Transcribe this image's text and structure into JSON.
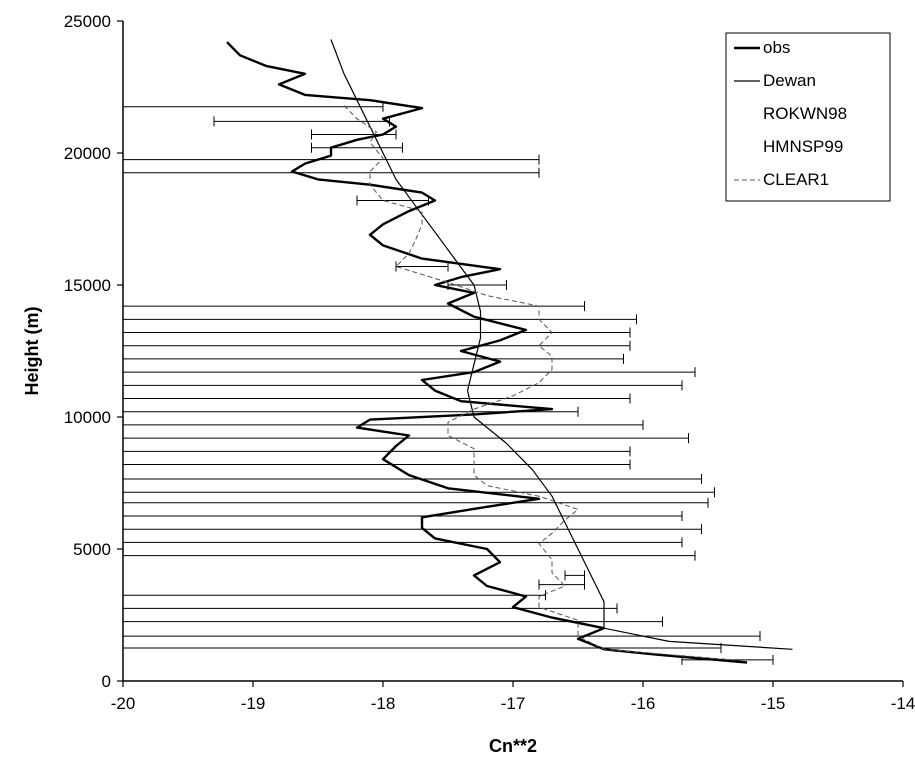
{
  "chart_data": {
    "type": "line",
    "title": "",
    "xlabel": "Cn**2",
    "ylabel": "Height (m)",
    "xlim": [
      -20,
      -14
    ],
    "ylim": [
      0,
      25000
    ],
    "x_ticks": [
      "-20",
      "-19",
      "-18",
      "-17",
      "-16",
      "-15",
      "-14"
    ],
    "y_ticks": [
      "0",
      "5000",
      "10000",
      "15000",
      "20000",
      "25000"
    ],
    "legend_position": "top-right",
    "grid": false,
    "series": [
      {
        "name": "obs",
        "style": "thick",
        "points": [
          [
            -15.2,
            700
          ],
          [
            -15.9,
            1000
          ],
          [
            -16.3,
            1200
          ],
          [
            -16.5,
            1600
          ],
          [
            -16.3,
            2000
          ],
          [
            -16.7,
            2400
          ],
          [
            -17.0,
            2800
          ],
          [
            -16.9,
            3200
          ],
          [
            -17.2,
            3600
          ],
          [
            -17.3,
            4000
          ],
          [
            -17.1,
            4500
          ],
          [
            -17.2,
            5000
          ],
          [
            -17.6,
            5400
          ],
          [
            -17.7,
            5800
          ],
          [
            -17.7,
            6200
          ],
          [
            -17.2,
            6600
          ],
          [
            -16.8,
            6900
          ],
          [
            -17.5,
            7300
          ],
          [
            -17.8,
            7800
          ],
          [
            -18.0,
            8400
          ],
          [
            -17.9,
            8900
          ],
          [
            -17.8,
            9300
          ],
          [
            -18.2,
            9600
          ],
          [
            -18.1,
            9900
          ],
          [
            -17.3,
            10100
          ],
          [
            -16.7,
            10300
          ],
          [
            -17.4,
            10600
          ],
          [
            -17.6,
            11000
          ],
          [
            -17.7,
            11400
          ],
          [
            -17.3,
            11700
          ],
          [
            -17.1,
            12100
          ],
          [
            -17.4,
            12500
          ],
          [
            -17.1,
            12900
          ],
          [
            -16.9,
            13300
          ],
          [
            -17.3,
            13800
          ],
          [
            -17.5,
            14300
          ],
          [
            -17.3,
            14700
          ],
          [
            -17.6,
            15000
          ],
          [
            -17.4,
            15300
          ],
          [
            -17.1,
            15600
          ],
          [
            -17.7,
            16000
          ],
          [
            -18.0,
            16500
          ],
          [
            -18.1,
            16900
          ],
          [
            -18.0,
            17300
          ],
          [
            -17.8,
            17800
          ],
          [
            -17.6,
            18200
          ],
          [
            -17.7,
            18500
          ],
          [
            -18.1,
            18800
          ],
          [
            -18.5,
            19000
          ],
          [
            -18.7,
            19300
          ],
          [
            -18.6,
            19600
          ],
          [
            -18.4,
            19900
          ],
          [
            -18.4,
            20200
          ],
          [
            -18.2,
            20500
          ],
          [
            -18.0,
            20700
          ],
          [
            -17.9,
            21000
          ],
          [
            -18.0,
            21300
          ],
          [
            -17.7,
            21700
          ],
          [
            -18.1,
            22000
          ],
          [
            -18.6,
            22200
          ],
          [
            -18.8,
            22600
          ],
          [
            -18.6,
            23000
          ],
          [
            -18.9,
            23300
          ],
          [
            -19.1,
            23700
          ],
          [
            -19.2,
            24200
          ]
        ]
      },
      {
        "name": "Dewan",
        "style": "thin",
        "points": [
          [
            -14.85,
            1200
          ],
          [
            -15.8,
            1500
          ],
          [
            -16.3,
            2000
          ],
          [
            -16.3,
            3000
          ],
          [
            -16.4,
            4000
          ],
          [
            -16.5,
            5000
          ],
          [
            -16.6,
            6000
          ],
          [
            -16.7,
            7000
          ],
          [
            -16.85,
            8000
          ],
          [
            -17.05,
            9000
          ],
          [
            -17.3,
            10000
          ],
          [
            -17.35,
            11000
          ],
          [
            -17.3,
            12000
          ],
          [
            -17.25,
            13000
          ],
          [
            -17.25,
            14000
          ],
          [
            -17.3,
            15000
          ],
          [
            -17.45,
            16000
          ],
          [
            -17.6,
            17000
          ],
          [
            -17.75,
            18000
          ],
          [
            -17.9,
            19000
          ],
          [
            -18.0,
            20000
          ],
          [
            -18.1,
            21000
          ],
          [
            -18.2,
            22000
          ],
          [
            -18.3,
            23000
          ],
          [
            -18.4,
            24300
          ]
        ]
      },
      {
        "name": "ROKWN98",
        "style": "hidden",
        "points": []
      },
      {
        "name": "HMNSP99",
        "style": "hidden",
        "points": []
      },
      {
        "name": "CLEAR1",
        "style": "thin-errorbars",
        "points": [
          [
            -15.3,
            800
          ],
          [
            -16.3,
            1200
          ],
          [
            -16.5,
            1700
          ],
          [
            -16.5,
            2300
          ],
          [
            -16.8,
            2800
          ],
          [
            -16.8,
            3200
          ],
          [
            -16.6,
            3600
          ],
          [
            -16.7,
            4100
          ],
          [
            -16.7,
            4600
          ],
          [
            -16.8,
            5200
          ],
          [
            -16.7,
            5600
          ],
          [
            -16.6,
            6100
          ],
          [
            -16.5,
            6500
          ],
          [
            -16.8,
            7000
          ],
          [
            -17.2,
            7400
          ],
          [
            -17.3,
            7800
          ],
          [
            -17.3,
            8300
          ],
          [
            -17.3,
            8800
          ],
          [
            -17.5,
            9300
          ],
          [
            -17.5,
            9800
          ],
          [
            -17.3,
            10300
          ],
          [
            -17.0,
            10800
          ],
          [
            -16.8,
            11300
          ],
          [
            -16.7,
            11800
          ],
          [
            -16.7,
            12300
          ],
          [
            -16.8,
            12700
          ],
          [
            -16.7,
            13200
          ],
          [
            -16.8,
            13700
          ],
          [
            -16.8,
            14200
          ],
          [
            -17.2,
            14600
          ],
          [
            -17.5,
            15100
          ],
          [
            -17.9,
            15700
          ],
          [
            -17.8,
            16200
          ],
          [
            -17.75,
            16700
          ],
          [
            -17.7,
            17300
          ],
          [
            -17.7,
            17800
          ],
          [
            -18.0,
            18200
          ],
          [
            -18.1,
            18800
          ],
          [
            -18.1,
            19300
          ],
          [
            -18.0,
            19800
          ],
          [
            -18.1,
            20400
          ],
          [
            -18.05,
            20800
          ],
          [
            -18.2,
            21300
          ],
          [
            -18.3,
            21800
          ]
        ],
        "errorbars": [
          {
            "y": 800,
            "lo": -15.7,
            "hi": -15.0
          },
          {
            "y": 1250,
            "lo": -20.0,
            "hi": -15.4
          },
          {
            "y": 1700,
            "lo": -20.0,
            "hi": -15.1
          },
          {
            "y": 2250,
            "lo": -20.0,
            "hi": -15.85
          },
          {
            "y": 2750,
            "lo": -20.0,
            "hi": -16.2
          },
          {
            "y": 3250,
            "lo": -20.0,
            "hi": -16.75
          },
          {
            "y": 3650,
            "lo": -16.8,
            "hi": -16.45
          },
          {
            "y": 4000,
            "lo": -16.6,
            "hi": -16.45
          },
          {
            "y": 4750,
            "lo": -20.0,
            "hi": -15.6
          },
          {
            "y": 5250,
            "lo": -20.0,
            "hi": -15.7
          },
          {
            "y": 5750,
            "lo": -20.0,
            "hi": -15.55
          },
          {
            "y": 6250,
            "lo": -20.0,
            "hi": -15.7
          },
          {
            "y": 6750,
            "lo": -20.0,
            "hi": -15.5
          },
          {
            "y": 7150,
            "lo": -20.0,
            "hi": -15.45
          },
          {
            "y": 7650,
            "lo": -20.0,
            "hi": -15.55
          },
          {
            "y": 8200,
            "lo": -20.0,
            "hi": -16.1
          },
          {
            "y": 8700,
            "lo": -20.0,
            "hi": -16.1
          },
          {
            "y": 9200,
            "lo": -20.0,
            "hi": -15.65
          },
          {
            "y": 9700,
            "lo": -20.0,
            "hi": -16.0
          },
          {
            "y": 10200,
            "lo": -20.0,
            "hi": -16.5
          },
          {
            "y": 10700,
            "lo": -20.0,
            "hi": -16.1
          },
          {
            "y": 11200,
            "lo": -20.0,
            "hi": -15.7
          },
          {
            "y": 11700,
            "lo": -20.0,
            "hi": -15.6
          },
          {
            "y": 12200,
            "lo": -20.0,
            "hi": -16.15
          },
          {
            "y": 12700,
            "lo": -20.0,
            "hi": -16.1
          },
          {
            "y": 13200,
            "lo": -20.0,
            "hi": -16.1
          },
          {
            "y": 13700,
            "lo": -20.0,
            "hi": -16.05
          },
          {
            "y": 14200,
            "lo": -20.0,
            "hi": -16.45
          },
          {
            "y": 15000,
            "lo": -17.5,
            "hi": -17.05
          },
          {
            "y": 15700,
            "lo": -17.9,
            "hi": -17.5
          },
          {
            "y": 18200,
            "lo": -18.2,
            "hi": -17.65
          },
          {
            "y": 19250,
            "lo": -20.0,
            "hi": -16.8
          },
          {
            "y": 19750,
            "lo": -20.0,
            "hi": -16.8
          },
          {
            "y": 20200,
            "lo": -18.55,
            "hi": -17.85
          },
          {
            "y": 20700,
            "lo": -18.55,
            "hi": -17.9
          },
          {
            "y": 21200,
            "lo": -19.3,
            "hi": -17.95
          },
          {
            "y": 21750,
            "lo": -20.0,
            "hi": -18.0
          }
        ]
      }
    ]
  }
}
